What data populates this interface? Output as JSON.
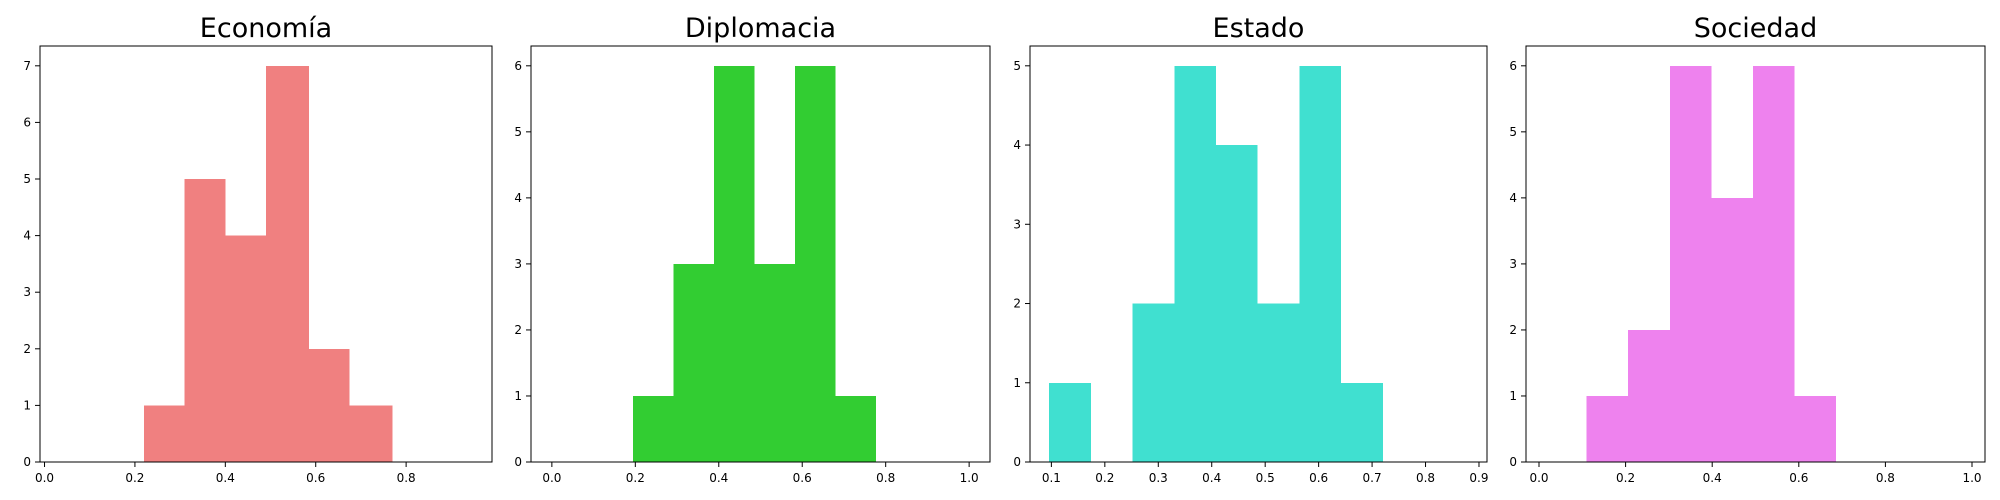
{
  "chart_data": [
    {
      "type": "bar",
      "title": "Economía",
      "color": "#F08080",
      "xlim": [
        -0.01,
        0.99
      ],
      "ylim": [
        0,
        7.35
      ],
      "xticks": [
        0.0,
        0.2,
        0.4,
        0.6,
        0.8
      ],
      "xtick_labels": [
        "0.0",
        "0.2",
        "0.4",
        "0.6",
        "0.8"
      ],
      "yticks": [
        0,
        1,
        2,
        3,
        4,
        5,
        6,
        7
      ],
      "ytick_labels": [
        "0",
        "1",
        "2",
        "3",
        "4",
        "5",
        "6",
        "7"
      ],
      "bins": [
        {
          "x0": 0.22,
          "x1": 0.31,
          "count": 1
        },
        {
          "x0": 0.31,
          "x1": 0.4,
          "count": 5
        },
        {
          "x0": 0.4,
          "x1": 0.49,
          "count": 4
        },
        {
          "x0": 0.49,
          "x1": 0.585,
          "count": 7
        },
        {
          "x0": 0.585,
          "x1": 0.675,
          "count": 2
        },
        {
          "x0": 0.675,
          "x1": 0.77,
          "count": 1
        }
      ]
    },
    {
      "type": "bar",
      "title": "Diplomacia",
      "color": "#32CD32",
      "xlim": [
        -0.05,
        1.05
      ],
      "ylim": [
        0,
        6.3
      ],
      "xticks": [
        0.0,
        0.2,
        0.4,
        0.6,
        0.8,
        1.0
      ],
      "xtick_labels": [
        "0.0",
        "0.2",
        "0.4",
        "0.6",
        "0.8",
        "1.0"
      ],
      "yticks": [
        0,
        1,
        2,
        3,
        4,
        5,
        6
      ],
      "ytick_labels": [
        "0",
        "1",
        "2",
        "3",
        "4",
        "5",
        "6"
      ],
      "bins": [
        {
          "x0": 0.195,
          "x1": 0.292,
          "count": 1
        },
        {
          "x0": 0.292,
          "x1": 0.389,
          "count": 3
        },
        {
          "x0": 0.389,
          "x1": 0.486,
          "count": 6
        },
        {
          "x0": 0.486,
          "x1": 0.583,
          "count": 3
        },
        {
          "x0": 0.583,
          "x1": 0.68,
          "count": 6
        },
        {
          "x0": 0.68,
          "x1": 0.777,
          "count": 1
        }
      ]
    },
    {
      "type": "bar",
      "title": "Estado",
      "color": "#40E0D0",
      "xlim": [
        0.06,
        0.915
      ],
      "ylim": [
        0,
        5.25
      ],
      "xticks": [
        0.1,
        0.2,
        0.3,
        0.4,
        0.5,
        0.6,
        0.7,
        0.8,
        0.9
      ],
      "xtick_labels": [
        "0.1",
        "0.2",
        "0.3",
        "0.4",
        "0.5",
        "0.6",
        "0.7",
        "0.8",
        "0.9"
      ],
      "yticks": [
        0,
        1,
        2,
        3,
        4,
        5
      ],
      "ytick_labels": [
        "0",
        "1",
        "2",
        "3",
        "4",
        "5"
      ],
      "bins": [
        {
          "x0": 0.096,
          "x1": 0.174,
          "count": 1
        },
        {
          "x0": 0.174,
          "x1": 0.252,
          "count": 0
        },
        {
          "x0": 0.252,
          "x1": 0.33,
          "count": 2
        },
        {
          "x0": 0.33,
          "x1": 0.408,
          "count": 5
        },
        {
          "x0": 0.408,
          "x1": 0.486,
          "count": 4
        },
        {
          "x0": 0.486,
          "x1": 0.564,
          "count": 2
        },
        {
          "x0": 0.564,
          "x1": 0.642,
          "count": 5
        },
        {
          "x0": 0.642,
          "x1": 0.72,
          "count": 1
        }
      ]
    },
    {
      "type": "bar",
      "title": "Sociedad",
      "color": "#EE82EE",
      "xlim": [
        -0.03,
        1.03
      ],
      "ylim": [
        0,
        6.3
      ],
      "xticks": [
        0.0,
        0.2,
        0.4,
        0.6,
        0.8,
        1.0
      ],
      "xtick_labels": [
        "0.0",
        "0.2",
        "0.4",
        "0.6",
        "0.8",
        "1.0"
      ],
      "yticks": [
        0,
        1,
        2,
        3,
        4,
        5,
        6
      ],
      "ytick_labels": [
        "0",
        "1",
        "2",
        "3",
        "4",
        "5",
        "6"
      ],
      "bins": [
        {
          "x0": 0.11,
          "x1": 0.206,
          "count": 1
        },
        {
          "x0": 0.206,
          "x1": 0.302,
          "count": 2
        },
        {
          "x0": 0.302,
          "x1": 0.398,
          "count": 6
        },
        {
          "x0": 0.398,
          "x1": 0.494,
          "count": 4
        },
        {
          "x0": 0.494,
          "x1": 0.59,
          "count": 6
        },
        {
          "x0": 0.59,
          "x1": 0.686,
          "count": 1
        }
      ]
    }
  ]
}
